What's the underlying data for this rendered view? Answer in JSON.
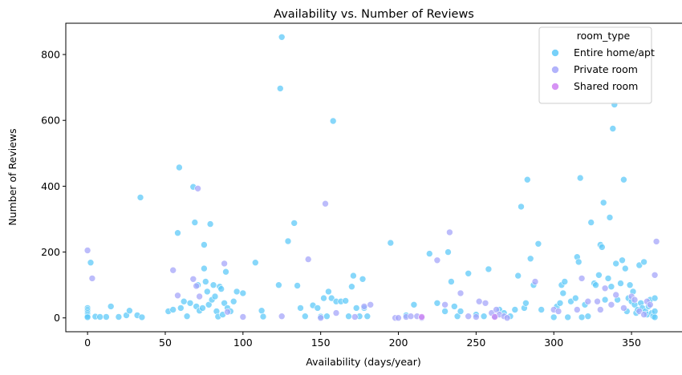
{
  "chart_data": {
    "type": "scatter",
    "title": "Availability vs. Number of Reviews",
    "xlabel": "Availability (days/year)",
    "ylabel": "Number of Reviews",
    "xlim": [
      -14,
      383
    ],
    "ylim": [
      -42,
      895
    ],
    "xticks": [
      0,
      50,
      100,
      150,
      200,
      250,
      300,
      350
    ],
    "yticks": [
      0,
      200,
      400,
      600,
      800
    ],
    "grid": false,
    "legend": {
      "title": "room_type",
      "placement": "top-right"
    },
    "series": [
      {
        "name": "Entire home/apt",
        "color": "#5fc9f8",
        "points": [
          [
            0,
            30
          ],
          [
            0,
            25
          ],
          [
            0,
            20
          ],
          [
            0,
            15
          ],
          [
            0,
            10
          ],
          [
            0,
            5
          ],
          [
            0,
            2
          ],
          [
            2,
            168
          ],
          [
            5,
            4
          ],
          [
            8,
            3
          ],
          [
            12,
            3
          ],
          [
            15,
            35
          ],
          [
            20,
            3
          ],
          [
            25,
            8
          ],
          [
            27,
            22
          ],
          [
            32,
            8
          ],
          [
            34,
            366
          ],
          [
            35,
            2
          ],
          [
            52,
            20
          ],
          [
            55,
            25
          ],
          [
            58,
            258
          ],
          [
            59,
            457
          ],
          [
            60,
            30
          ],
          [
            62,
            50
          ],
          [
            64,
            5
          ],
          [
            66,
            45
          ],
          [
            68,
            398
          ],
          [
            69,
            290
          ],
          [
            70,
            35
          ],
          [
            71,
            100
          ],
          [
            72,
            22
          ],
          [
            74,
            30
          ],
          [
            75,
            150
          ],
          [
            75,
            222
          ],
          [
            76,
            110
          ],
          [
            77,
            80
          ],
          [
            78,
            40
          ],
          [
            79,
            285
          ],
          [
            80,
            55
          ],
          [
            81,
            100
          ],
          [
            82,
            65
          ],
          [
            83,
            20
          ],
          [
            84,
            4
          ],
          [
            85,
            95
          ],
          [
            86,
            88
          ],
          [
            87,
            10
          ],
          [
            88,
            45
          ],
          [
            89,
            140
          ],
          [
            90,
            30
          ],
          [
            92,
            20
          ],
          [
            94,
            50
          ],
          [
            96,
            80
          ],
          [
            100,
            75
          ],
          [
            108,
            168
          ],
          [
            112,
            22
          ],
          [
            113,
            4
          ],
          [
            123,
            100
          ],
          [
            124,
            697
          ],
          [
            125,
            853
          ],
          [
            129,
            233
          ],
          [
            133,
            288
          ],
          [
            135,
            98
          ],
          [
            137,
            30
          ],
          [
            140,
            5
          ],
          [
            145,
            38
          ],
          [
            148,
            30
          ],
          [
            150,
            4
          ],
          [
            152,
            60
          ],
          [
            154,
            5
          ],
          [
            155,
            80
          ],
          [
            157,
            60
          ],
          [
            158,
            598
          ],
          [
            160,
            50
          ],
          [
            163,
            50
          ],
          [
            166,
            52
          ],
          [
            168,
            5
          ],
          [
            170,
            95
          ],
          [
            171,
            128
          ],
          [
            173,
            30
          ],
          [
            175,
            5
          ],
          [
            177,
            118
          ],
          [
            178,
            30
          ],
          [
            180,
            5
          ],
          [
            195,
            228
          ],
          [
            205,
            8
          ],
          [
            210,
            40
          ],
          [
            220,
            195
          ],
          [
            225,
            45
          ],
          [
            230,
            20
          ],
          [
            232,
            200
          ],
          [
            234,
            110
          ],
          [
            236,
            35
          ],
          [
            238,
            5
          ],
          [
            240,
            20
          ],
          [
            245,
            135
          ],
          [
            250,
            10
          ],
          [
            255,
            5
          ],
          [
            258,
            148
          ],
          [
            262,
            5
          ],
          [
            265,
            25
          ],
          [
            268,
            15
          ],
          [
            272,
            5
          ],
          [
            275,
            25
          ],
          [
            277,
            128
          ],
          [
            279,
            338
          ],
          [
            281,
            30
          ],
          [
            282,
            45
          ],
          [
            283,
            420
          ],
          [
            285,
            180
          ],
          [
            287,
            100
          ],
          [
            290,
            225
          ],
          [
            292,
            25
          ],
          [
            300,
            2
          ],
          [
            302,
            35
          ],
          [
            304,
            45
          ],
          [
            305,
            100
          ],
          [
            306,
            75
          ],
          [
            307,
            110
          ],
          [
            309,
            2
          ],
          [
            311,
            50
          ],
          [
            314,
            60
          ],
          [
            315,
            185
          ],
          [
            316,
            170
          ],
          [
            317,
            425
          ],
          [
            318,
            2
          ],
          [
            320,
            40
          ],
          [
            322,
            5
          ],
          [
            324,
            290
          ],
          [
            326,
            105
          ],
          [
            327,
            100
          ],
          [
            329,
            130
          ],
          [
            330,
            222
          ],
          [
            331,
            215
          ],
          [
            332,
            350
          ],
          [
            333,
            55
          ],
          [
            335,
            120
          ],
          [
            336,
            305
          ],
          [
            337,
            95
          ],
          [
            338,
            575
          ],
          [
            339,
            648
          ],
          [
            340,
            165
          ],
          [
            341,
            55
          ],
          [
            343,
            105
          ],
          [
            344,
            175
          ],
          [
            345,
            420
          ],
          [
            346,
            150
          ],
          [
            347,
            20
          ],
          [
            348,
            60
          ],
          [
            349,
            100
          ],
          [
            350,
            50
          ],
          [
            351,
            80
          ],
          [
            352,
            40
          ],
          [
            353,
            15
          ],
          [
            354,
            25
          ],
          [
            355,
            160
          ],
          [
            356,
            45
          ],
          [
            357,
            30
          ],
          [
            358,
            170
          ],
          [
            359,
            20
          ],
          [
            360,
            10
          ],
          [
            361,
            35
          ],
          [
            362,
            55
          ],
          [
            363,
            15
          ],
          [
            364,
            5
          ],
          [
            365,
            60
          ],
          [
            365,
            20
          ],
          [
            365,
            2
          ]
        ]
      },
      {
        "name": "Private room",
        "color": "#a5a6fa",
        "points": [
          [
            0,
            205
          ],
          [
            3,
            120
          ],
          [
            55,
            145
          ],
          [
            58,
            68
          ],
          [
            68,
            118
          ],
          [
            70,
            97
          ],
          [
            71,
            393
          ],
          [
            72,
            65
          ],
          [
            88,
            165
          ],
          [
            90,
            18
          ],
          [
            100,
            3
          ],
          [
            125,
            5
          ],
          [
            142,
            178
          ],
          [
            150,
            0
          ],
          [
            153,
            347
          ],
          [
            160,
            15
          ],
          [
            172,
            3
          ],
          [
            178,
            35
          ],
          [
            182,
            40
          ],
          [
            198,
            0
          ],
          [
            200,
            0
          ],
          [
            205,
            3
          ],
          [
            208,
            5
          ],
          [
            212,
            5
          ],
          [
            215,
            0
          ],
          [
            225,
            175
          ],
          [
            230,
            40
          ],
          [
            233,
            260
          ],
          [
            240,
            75
          ],
          [
            245,
            5
          ],
          [
            250,
            3
          ],
          [
            252,
            50
          ],
          [
            256,
            45
          ],
          [
            260,
            15
          ],
          [
            263,
            25
          ],
          [
            265,
            10
          ],
          [
            268,
            5
          ],
          [
            270,
            0
          ],
          [
            288,
            110
          ],
          [
            300,
            25
          ],
          [
            303,
            20
          ],
          [
            315,
            25
          ],
          [
            318,
            120
          ],
          [
            322,
            50
          ],
          [
            328,
            50
          ],
          [
            330,
            25
          ],
          [
            333,
            90
          ],
          [
            337,
            40
          ],
          [
            340,
            70
          ],
          [
            345,
            30
          ],
          [
            350,
            65
          ],
          [
            352,
            55
          ],
          [
            355,
            20
          ],
          [
            358,
            10
          ],
          [
            360,
            50
          ],
          [
            362,
            40
          ],
          [
            365,
            130
          ],
          [
            366,
            232
          ]
        ]
      },
      {
        "name": "Shared room",
        "color": "#cf80f2",
        "points": [
          [
            215,
            3
          ],
          [
            262,
            3
          ]
        ]
      }
    ]
  }
}
